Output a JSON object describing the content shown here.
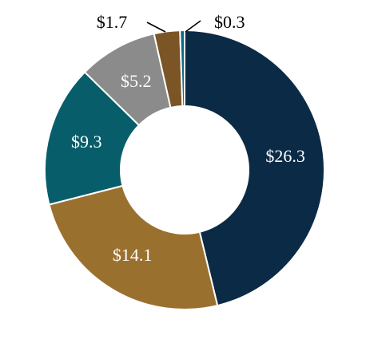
{
  "chart_data": {
    "type": "pie",
    "variant": "donut",
    "slices": [
      {
        "label": "$26.3",
        "value": 26.3,
        "color": "#0b2a46"
      },
      {
        "label": "$14.1",
        "value": 14.1,
        "color": "#9a702e"
      },
      {
        "label": "$9.3",
        "value": 9.3,
        "color": "#075e6a"
      },
      {
        "label": "$5.2",
        "value": 5.2,
        "color": "#8b8b8b"
      },
      {
        "label": "$1.7",
        "value": 1.7,
        "color": "#7c5526"
      },
      {
        "label": "$0.3",
        "value": 0.3,
        "color": "#0f6a88"
      }
    ],
    "start": "12 o'clock",
    "direction": "clockwise",
    "label_color_inside": "#ffffff",
    "label_color_outside": "#000000"
  }
}
